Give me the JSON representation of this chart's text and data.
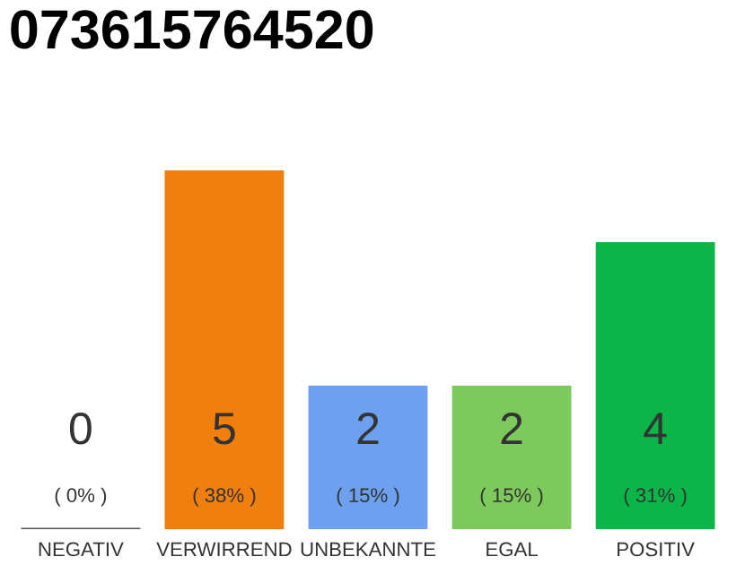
{
  "chart_data": {
    "type": "bar",
    "title": "073615764520",
    "categories": [
      "NEGATIV",
      "VERWIRREND",
      "UNBEKANNTE",
      "EGAL",
      "POSITIV"
    ],
    "values": [
      0,
      5,
      2,
      2,
      4
    ],
    "ylim": [
      0,
      5
    ],
    "tick_labels": "x",
    "colors": [
      "#555555",
      "#f07f0d",
      "#6da0ee",
      "#7ec95c",
      "#0bb548"
    ],
    "value_labels": [
      "0\n( 0% )",
      "5\n( 38% )",
      "2\n( 15% )",
      "2\n( 15% )",
      "4\n( 31% )"
    ],
    "grid": false,
    "legend": false
  }
}
